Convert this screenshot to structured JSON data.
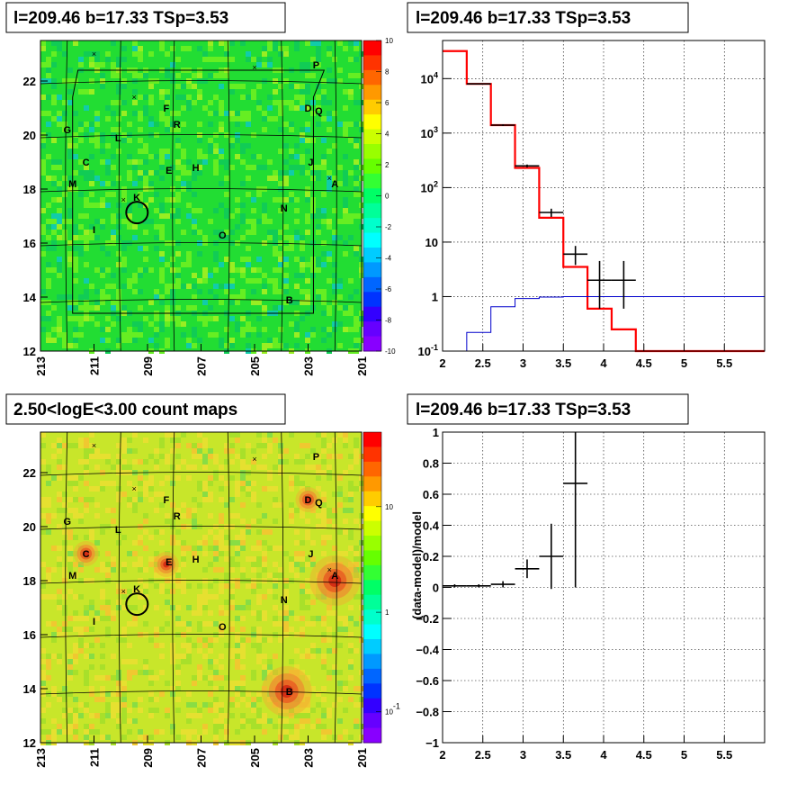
{
  "colors": {
    "data_hist": "#000000",
    "model_hist": "#ff0000",
    "background_hist": "#0000cc",
    "residual_map_fill": "#22dd33",
    "count_map_fill": "#c8e62a"
  },
  "panels": {
    "top_left": {
      "title": "l=209.46 b=17.33 TSp=3.53",
      "x_ticks": [
        "213",
        "211",
        "209",
        "207",
        "205",
        "203",
        "201"
      ],
      "y_ticks": [
        "12",
        "14",
        "16",
        "18",
        "20",
        "22"
      ],
      "colorbar_ticks": [
        "10",
        "8",
        "6",
        "4",
        "2",
        "0",
        "-2",
        "-4",
        "-6",
        "-8",
        "-10"
      ]
    },
    "top_right": {
      "title": "l=209.46 b=17.33 TSp=3.53",
      "x_ticks": [
        "2",
        "2.5",
        "3",
        "3.5",
        "4",
        "4.5",
        "5",
        "5.5"
      ],
      "y_ticks": [
        "10^-1",
        "1",
        "10",
        "10^2",
        "10^3",
        "10^4"
      ]
    },
    "bottom_left": {
      "title": "2.50<logE<3.00 count maps",
      "x_ticks": [
        "213",
        "211",
        "209",
        "207",
        "205",
        "203",
        "201"
      ],
      "y_ticks": [
        "12",
        "14",
        "16",
        "18",
        "20",
        "22"
      ],
      "colorbar_ticks": [
        "10",
        "1",
        "10^-1"
      ]
    },
    "bottom_right": {
      "title": "l=209.46 b=17.33 TSp=3.53",
      "ylabel": "(data-model)/model",
      "x_ticks": [
        "2",
        "2.5",
        "3",
        "3.5",
        "4",
        "4.5",
        "5",
        "5.5"
      ],
      "y_ticks": [
        "-1",
        "-0.8",
        "-0.6",
        "-0.4",
        "-0.2",
        "0",
        "0.2",
        "0.4",
        "0.6",
        "0.8",
        "1"
      ]
    }
  },
  "sources": [
    "A",
    "B",
    "C",
    "D",
    "E",
    "F",
    "G",
    "H",
    "I",
    "J",
    "K",
    "L",
    "M",
    "N",
    "O",
    "P",
    "Q",
    "R"
  ],
  "chart_data": [
    {
      "type": "heatmap",
      "title": "l=209.46 b=17.33 TSp=3.53",
      "xlim": [
        213,
        201
      ],
      "ylim": [
        12,
        23.5
      ],
      "zlim": [
        -10,
        10
      ],
      "source_positions": [
        {
          "name": "A",
          "l": 202.0,
          "b": 18.2
        },
        {
          "name": "B",
          "l": 203.7,
          "b": 13.9
        },
        {
          "name": "C",
          "l": 211.3,
          "b": 19.0
        },
        {
          "name": "D",
          "l": 203.0,
          "b": 21.0
        },
        {
          "name": "E",
          "l": 208.2,
          "b": 18.7
        },
        {
          "name": "F",
          "l": 208.3,
          "b": 21.0
        },
        {
          "name": "G",
          "l": 212.0,
          "b": 20.2
        },
        {
          "name": "H",
          "l": 207.2,
          "b": 18.8
        },
        {
          "name": "I",
          "l": 211.0,
          "b": 16.5
        },
        {
          "name": "J",
          "l": 202.9,
          "b": 19.0
        },
        {
          "name": "K",
          "l": 209.4,
          "b": 17.7
        },
        {
          "name": "L",
          "l": 210.1,
          "b": 19.9
        },
        {
          "name": "M",
          "l": 211.8,
          "b": 18.2
        },
        {
          "name": "N",
          "l": 203.9,
          "b": 17.3
        },
        {
          "name": "O",
          "l": 206.2,
          "b": 16.3
        },
        {
          "name": "P",
          "l": 202.7,
          "b": 22.6
        },
        {
          "name": "Q",
          "l": 202.6,
          "b": 20.9
        },
        {
          "name": "R",
          "l": 207.9,
          "b": 20.4
        }
      ],
      "target_circle": {
        "l": 209.46,
        "b": 17.33
      }
    },
    {
      "type": "line",
      "title": "l=209.46 b=17.33 TSp=3.53",
      "xlim": [
        2,
        6
      ],
      "ylim": [
        0.1,
        50000
      ],
      "yscale": "log",
      "grid": true,
      "series": [
        {
          "style": "step",
          "color": "#ff0000",
          "edges": [
            2,
            2.3,
            2.6,
            2.9,
            3.2,
            3.5,
            3.8,
            4.1,
            4.4,
            6
          ],
          "values": [
            32000,
            8000,
            1400,
            230,
            28,
            3.5,
            0.6,
            0.25,
            0.1
          ]
        },
        {
          "style": "step",
          "color": "#0000cc",
          "edges": [
            2,
            2.3,
            2.6,
            2.9,
            3.2,
            3.5,
            3.8,
            6
          ],
          "values": [
            0.05,
            0.22,
            0.65,
            0.92,
            0.98,
            1.0,
            1.0
          ]
        },
        {
          "style": "errorbars",
          "color": "#000000",
          "points": [
            {
              "x": 2.45,
              "y": 8000,
              "xerr": 0.15,
              "ylo": 7800,
              "yhi": 8200
            },
            {
              "x": 2.75,
              "y": 1400,
              "xerr": 0.15,
              "ylo": 1350,
              "yhi": 1450
            },
            {
              "x": 3.05,
              "y": 250,
              "xerr": 0.15,
              "ylo": 235,
              "yhi": 265
            },
            {
              "x": 3.35,
              "y": 35,
              "xerr": 0.15,
              "ylo": 29,
              "yhi": 41
            },
            {
              "x": 3.65,
              "y": 6,
              "xerr": 0.15,
              "ylo": 3.8,
              "yhi": 8.5
            },
            {
              "x": 3.95,
              "y": 2,
              "xerr": 0.15,
              "ylo": 0.6,
              "yhi": 4.5
            },
            {
              "x": 4.25,
              "y": 2,
              "xerr": 0.15,
              "ylo": 0.6,
              "yhi": 4.5
            }
          ]
        }
      ]
    },
    {
      "type": "heatmap",
      "title": "2.50<logE<3.00 count maps",
      "xlim": [
        213,
        201
      ],
      "ylim": [
        12,
        23.5
      ],
      "zscale": "log",
      "hotspots": [
        {
          "name": "A",
          "l": 202.0,
          "b": 18.0
        },
        {
          "name": "B",
          "l": 203.8,
          "b": 13.9
        },
        {
          "name": "C",
          "l": 211.3,
          "b": 19.0
        },
        {
          "name": "E",
          "l": 208.3,
          "b": 18.6
        },
        {
          "name": "D",
          "l": 203.0,
          "b": 21.0
        }
      ],
      "target_circle": {
        "l": 209.46,
        "b": 17.33
      }
    },
    {
      "type": "scatter",
      "title": "l=209.46 b=17.33 TSp=3.53",
      "xlabel": "",
      "ylabel": "(data-model)/model",
      "xlim": [
        2,
        6
      ],
      "ylim": [
        -1,
        1
      ],
      "grid": true,
      "points": [
        {
          "x": 2.15,
          "y": 0.01,
          "xerr": 0.15,
          "yerr": 0.01
        },
        {
          "x": 2.45,
          "y": 0.01,
          "xerr": 0.15,
          "yerr": 0.01
        },
        {
          "x": 2.75,
          "y": 0.02,
          "xerr": 0.15,
          "yerr": 0.02
        },
        {
          "x": 3.05,
          "y": 0.12,
          "xerr": 0.15,
          "yerr": 0.06
        },
        {
          "x": 3.35,
          "y": 0.2,
          "xerr": 0.15,
          "yerr": 0.21
        },
        {
          "x": 3.65,
          "y": 0.67,
          "xerr": 0.15,
          "yerr": 0.67
        }
      ]
    }
  ]
}
